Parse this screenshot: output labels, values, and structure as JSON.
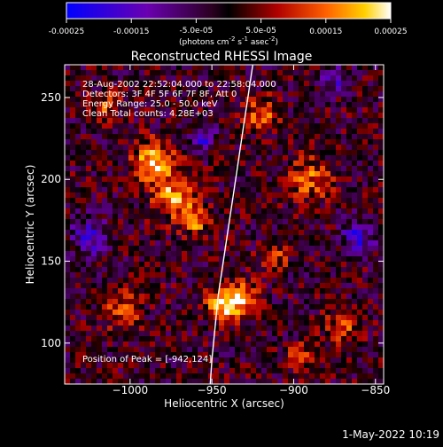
{
  "title": "Reconstructed RHESSI Image",
  "colorbar": {
    "units_parts": {
      "base1": "(photons cm",
      "sup1": "-2",
      "base2": " s",
      "sup2": "-1",
      "base3": " asec",
      "sup3": "-2",
      "close": ")"
    },
    "range": [
      -0.00025,
      0.00025
    ],
    "ticks": [
      {
        "value": -0.00025,
        "label": "-0.00025",
        "row": "lower"
      },
      {
        "value": -0.00015,
        "label": "-0.00015",
        "row": "lower"
      },
      {
        "value": -5e-05,
        "label": "-5.0e-05",
        "row": "upper"
      },
      {
        "value": 5e-05,
        "label": "5.0e-05",
        "row": "upper"
      },
      {
        "value": 0.00015,
        "label": "0.00015",
        "row": "lower"
      },
      {
        "value": 0.00025,
        "label": "0.00025",
        "row": "lower"
      }
    ]
  },
  "annotations": {
    "time": "28-Aug-2002 22:52:04.000 to 22:58:04.000",
    "detectors": "Detectors: 3F 4F 5F 6F 7F 8F, Att 0",
    "energy": "Energy Range: 25.0 - 50.0 keV",
    "method": "Clean    Total counts: 4.28E+03",
    "peak": "Position of Peak = [-942,124]"
  },
  "footer_timestamp": "1-May-2022 10:19",
  "chart_data": {
    "type": "heatmap",
    "title": "Reconstructed RHESSI Image",
    "xlabel": "Heliocentric X (arcsec)",
    "ylabel": "Heliocentric Y (arcsec)",
    "xlim": [
      -1040,
      -845
    ],
    "ylim": [
      75,
      270
    ],
    "xticks": [
      -1000,
      -950,
      -900,
      -850
    ],
    "yticks": [
      100,
      150,
      200,
      250
    ],
    "colormap": "red-temperature",
    "value_range": [
      -0.00025,
      0.00025
    ],
    "limb_curve": [
      [
        -925,
        270
      ],
      [
        -928,
        250
      ],
      [
        -931,
        230
      ],
      [
        -934,
        210
      ],
      [
        -937,
        190
      ],
      [
        -940,
        170
      ],
      [
        -943,
        150
      ],
      [
        -946,
        130
      ],
      [
        -948,
        110
      ],
      [
        -950,
        90
      ],
      [
        -951,
        75
      ]
    ],
    "peak_position": [
      -942,
      124
    ],
    "hotspots": [
      {
        "x": -942,
        "y": 124,
        "sigma": 7,
        "amp": 0.00025
      },
      {
        "x": -930,
        "y": 128,
        "sigma": 6,
        "amp": 0.00018
      },
      {
        "x": -985,
        "y": 210,
        "sigma": 9,
        "amp": 0.00022
      },
      {
        "x": -973,
        "y": 188,
        "sigma": 8,
        "amp": 0.0002
      },
      {
        "x": -960,
        "y": 175,
        "sigma": 6,
        "amp": 0.00016
      },
      {
        "x": -920,
        "y": 240,
        "sigma": 7,
        "amp": 0.00015
      },
      {
        "x": -890,
        "y": 200,
        "sigma": 9,
        "amp": 0.00014
      },
      {
        "x": -912,
        "y": 152,
        "sigma": 6,
        "amp": 0.00012
      },
      {
        "x": -1005,
        "y": 120,
        "sigma": 8,
        "amp": 0.00013
      },
      {
        "x": -1015,
        "y": 245,
        "sigma": 6,
        "amp": 0.00011
      },
      {
        "x": -870,
        "y": 110,
        "sigma": 7,
        "amp": 0.00013
      },
      {
        "x": -895,
        "y": 92,
        "sigma": 6,
        "amp": 0.00012
      },
      {
        "x": -955,
        "y": 225,
        "sigma": 5,
        "amp": -0.00015
      },
      {
        "x": -1025,
        "y": 165,
        "sigma": 8,
        "amp": -0.00014
      },
      {
        "x": -860,
        "y": 165,
        "sigma": 7,
        "amp": -0.00016
      },
      {
        "x": -875,
        "y": 262,
        "sigma": 6,
        "amp": -0.00013
      }
    ]
  }
}
